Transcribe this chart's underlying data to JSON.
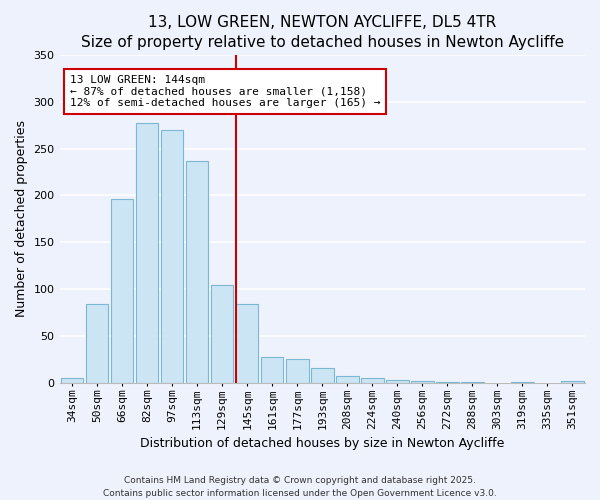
{
  "title": "13, LOW GREEN, NEWTON AYCLIFFE, DL5 4TR",
  "subtitle": "Size of property relative to detached houses in Newton Aycliffe",
  "xlabel": "Distribution of detached houses by size in Newton Aycliffe",
  "ylabel": "Number of detached properties",
  "bar_labels": [
    "34sqm",
    "50sqm",
    "66sqm",
    "82sqm",
    "97sqm",
    "113sqm",
    "129sqm",
    "145sqm",
    "161sqm",
    "177sqm",
    "193sqm",
    "208sqm",
    "224sqm",
    "240sqm",
    "256sqm",
    "272sqm",
    "288sqm",
    "303sqm",
    "319sqm",
    "335sqm",
    "351sqm"
  ],
  "bar_values": [
    5,
    84,
    196,
    277,
    270,
    237,
    104,
    84,
    27,
    25,
    16,
    7,
    5,
    3,
    2,
    1,
    1,
    0,
    1,
    0,
    2
  ],
  "bar_color": "#cce5f5",
  "bar_edge_color": "#7ab8d4",
  "vline_color": "#cc0000",
  "annotation_title": "13 LOW GREEN: 144sqm",
  "annotation_line1": "← 87% of detached houses are smaller (1,158)",
  "annotation_line2": "12% of semi-detached houses are larger (165) →",
  "annotation_box_color": "#ffffff",
  "annotation_box_edge": "#cc0000",
  "ylim": [
    0,
    350
  ],
  "yticks": [
    0,
    50,
    100,
    150,
    200,
    250,
    300,
    350
  ],
  "footer_line1": "Contains HM Land Registry data © Crown copyright and database right 2025.",
  "footer_line2": "Contains public sector information licensed under the Open Government Licence v3.0.",
  "bg_color": "#eef2fc",
  "grid_color": "#ffffff",
  "title_fontsize": 11,
  "subtitle_fontsize": 9.5,
  "axis_label_fontsize": 9,
  "tick_fontsize": 8
}
